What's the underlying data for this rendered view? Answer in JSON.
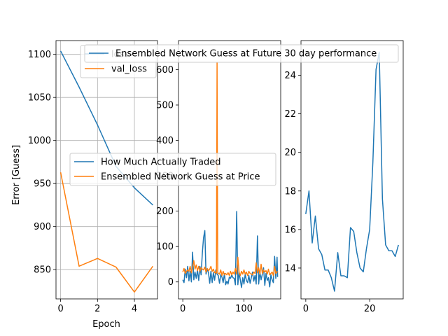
{
  "chart_data": [
    {
      "type": "line",
      "xlabel": "Epoch",
      "ylabel": "Error [Guess]",
      "xlim": [
        -0.25,
        5.25
      ],
      "ylim": [
        816,
        1116
      ],
      "grid": true,
      "legend_placement": "upper-right",
      "xticks": [
        0,
        2,
        4
      ],
      "yticks": [
        850,
        900,
        950,
        1000,
        1050,
        1100
      ],
      "x": [
        0,
        1,
        2,
        3,
        4,
        5
      ],
      "series": [
        {
          "name": "loss",
          "color": "#1f77b4",
          "values": [
            1104,
            1062,
            1018,
            970,
            945,
            925
          ]
        },
        {
          "name": "val_loss",
          "color": "#ff7f0e",
          "values": [
            963,
            854,
            863,
            853,
            824,
            854
          ]
        }
      ]
    },
    {
      "type": "line",
      "xlabel": "",
      "ylabel": "",
      "xlim": [
        -7,
        160
      ],
      "ylim": [
        -48,
        682
      ],
      "grid": false,
      "legend_placement": "center-left",
      "xticks": [
        0,
        100
      ],
      "yticks": [
        0,
        100,
        200,
        300,
        400,
        500,
        600
      ],
      "series": [
        {
          "name": "How Much Actually Traded",
          "color": "#1f77b4",
          "x": [
            0,
            2,
            4,
            6,
            8,
            10,
            12,
            14,
            16,
            18,
            20,
            22,
            24,
            26,
            28,
            30,
            32,
            34,
            36,
            38,
            40,
            42,
            44,
            46,
            48,
            50,
            52,
            54,
            56,
            58,
            60,
            62,
            64,
            66,
            68,
            70,
            72,
            74,
            76,
            78,
            80,
            82,
            84,
            86,
            88,
            90,
            92,
            94,
            96,
            98,
            100,
            102,
            104,
            106,
            108,
            110,
            112,
            114,
            116,
            118,
            120,
            122,
            124,
            126,
            128,
            130,
            132,
            134,
            136,
            138,
            140,
            142,
            144,
            146,
            148,
            150,
            152,
            154,
            155
          ],
          "values": [
            6,
            -2,
            36,
            12,
            44,
            3,
            30,
            0,
            84,
            6,
            28,
            10,
            34,
            4,
            44,
            20,
            83,
            125,
            145,
            22,
            36,
            26,
            -4,
            30,
            -2,
            26,
            5,
            34,
            22,
            18,
            -4,
            20,
            14,
            -2,
            24,
            -8,
            2,
            -6,
            14,
            10,
            20,
            12,
            10,
            -8,
            199,
            -8,
            28,
            6,
            -16,
            12,
            -6,
            22,
            4,
            -2,
            18,
            -4,
            12,
            28,
            2,
            18,
            -6,
            130,
            -6,
            28,
            6,
            22,
            40,
            -10,
            24,
            4,
            12,
            -14,
            20,
            6,
            -2,
            72,
            10,
            70,
            14
          ]
        },
        {
          "name": "Ensembled Network Guess at Price",
          "color": "#ff7f0e",
          "x": [
            0,
            2,
            4,
            6,
            8,
            10,
            12,
            14,
            16,
            18,
            20,
            22,
            24,
            26,
            28,
            30,
            32,
            34,
            36,
            38,
            40,
            42,
            44,
            46,
            48,
            50,
            52,
            54,
            55,
            56,
            57,
            58,
            60,
            62,
            64,
            66,
            68,
            70,
            72,
            74,
            76,
            78,
            80,
            82,
            84,
            86,
            88,
            90,
            92,
            94,
            96,
            98,
            100,
            102,
            104,
            106,
            108,
            110,
            112,
            114,
            116,
            118,
            120,
            122,
            124,
            126,
            128,
            130,
            132,
            134,
            136,
            138,
            140,
            142,
            144,
            146,
            148,
            150,
            152,
            154,
            155
          ],
          "values": [
            28,
            38,
            24,
            30,
            34,
            30,
            44,
            26,
            40,
            60,
            36,
            48,
            32,
            44,
            30,
            40,
            36,
            34,
            42,
            28,
            38,
            32,
            36,
            44,
            30,
            36,
            26,
            28,
            24,
            620,
            28,
            24,
            22,
            34,
            18,
            30,
            20,
            24,
            20,
            26,
            18,
            30,
            20,
            28,
            22,
            38,
            22,
            70,
            26,
            18,
            30,
            22,
            34,
            22,
            28,
            18,
            30,
            24,
            22,
            20,
            28,
            24,
            54,
            26,
            40,
            22,
            50,
            24,
            34,
            28,
            32,
            22,
            36,
            20,
            24,
            28,
            18,
            44,
            24,
            28,
            30
          ]
        }
      ]
    },
    {
      "type": "line",
      "xlabel": "",
      "ylabel": "",
      "xlim": [
        -1.5,
        30.5
      ],
      "ylim": [
        12.4,
        25.8
      ],
      "grid": false,
      "legend_placement": "top",
      "xticks": [
        0,
        20
      ],
      "yticks": [
        14,
        16,
        18,
        20,
        22,
        24
      ],
      "series": [
        {
          "name": "Ensembled Network Guess at Future 30 day performance",
          "color": "#1f77b4",
          "x": [
            0,
            1,
            2,
            3,
            4,
            5,
            6,
            7,
            8,
            9,
            10,
            11,
            12,
            13,
            14,
            15,
            16,
            17,
            18,
            19,
            20,
            21,
            22,
            23,
            24,
            25,
            26,
            27,
            28,
            29
          ],
          "values": [
            16.8,
            18.0,
            15.3,
            16.7,
            15.0,
            14.7,
            13.9,
            13.9,
            13.5,
            12.8,
            14.8,
            13.6,
            13.6,
            13.5,
            16.1,
            15.9,
            14.8,
            14.0,
            13.8,
            15.0,
            16.0,
            19.5,
            24.3,
            25.2,
            17.6,
            15.2,
            14.9,
            14.9,
            14.6,
            15.2
          ]
        }
      ]
    }
  ]
}
